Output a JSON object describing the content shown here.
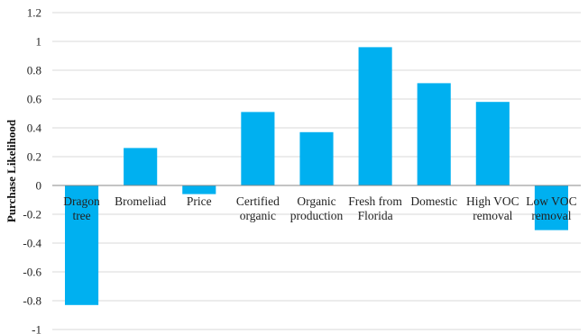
{
  "chart_data": {
    "type": "bar",
    "title": "",
    "xlabel": "",
    "ylabel": "Purchase Likelihood",
    "ylim": [
      -1,
      1.2
    ],
    "yticks": [
      "1.2",
      "1",
      "0.8",
      "0.6",
      "0.4",
      "0.2",
      "0",
      "-0.2",
      "-0.4",
      "-0.6",
      "-0.8",
      "-1"
    ],
    "grid": true,
    "legend": "none",
    "bar_color": "#00b0f0",
    "categories": [
      [
        "Dragon",
        "tree"
      ],
      [
        "Bromeliad"
      ],
      [
        "Price"
      ],
      [
        "Certified",
        "organic"
      ],
      [
        "Organic",
        "production"
      ],
      [
        "Fresh from",
        "Florida"
      ],
      [
        "Domestic"
      ],
      [
        "High VOC",
        "removal"
      ],
      [
        "Low VOC",
        "removal"
      ]
    ],
    "values": [
      -0.83,
      0.26,
      -0.06,
      0.51,
      0.37,
      0.96,
      0.71,
      0.58,
      -0.31
    ]
  }
}
